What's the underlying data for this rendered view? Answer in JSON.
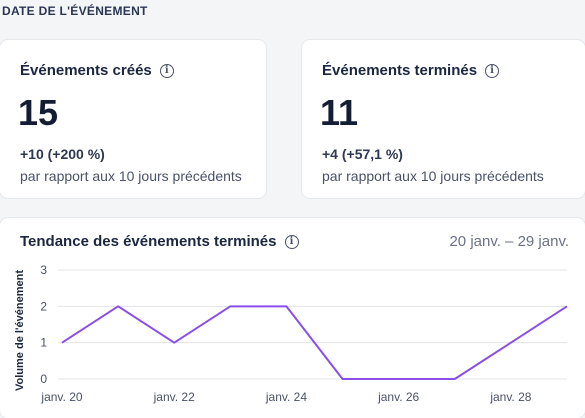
{
  "section_label": "DATE DE L'ÉVÉNEMENT",
  "kpis": [
    {
      "title": "Événements créés",
      "value": "15",
      "delta": "+10 (+200 %)",
      "comparison": "par rapport aux 10 jours précédents"
    },
    {
      "title": "Événements terminés",
      "value": "11",
      "delta": "+4 (+57,1 %)",
      "comparison": "par rapport aux 10 jours précédents"
    }
  ],
  "chart_card": {
    "title": "Tendance des événements terminés",
    "date_range": "20 janv. – 29 janv."
  },
  "icons": {
    "info": "info-icon"
  },
  "colors": {
    "line": "#8a4fe8",
    "grid": "#e3e5ea"
  },
  "chart_data": {
    "type": "line",
    "title": "Tendance des événements terminés",
    "ylabel": "Volume de l'événement",
    "xlabel": "",
    "ylim": [
      0,
      3
    ],
    "y_ticks": [
      "0",
      "1",
      "2",
      "3"
    ],
    "x": [
      "janv. 20",
      "janv. 21",
      "janv. 22",
      "janv. 23",
      "janv. 24",
      "janv. 25",
      "janv. 26",
      "janv. 27",
      "janv. 28",
      "janv. 29"
    ],
    "x_tick_labels": [
      "janv. 20",
      "janv. 22",
      "janv. 24",
      "janv. 26",
      "janv. 28"
    ],
    "series": [
      {
        "values": [
          1,
          2,
          1,
          2,
          2,
          0,
          0,
          0,
          1,
          2
        ]
      }
    ],
    "grid": true,
    "legend": "none"
  }
}
